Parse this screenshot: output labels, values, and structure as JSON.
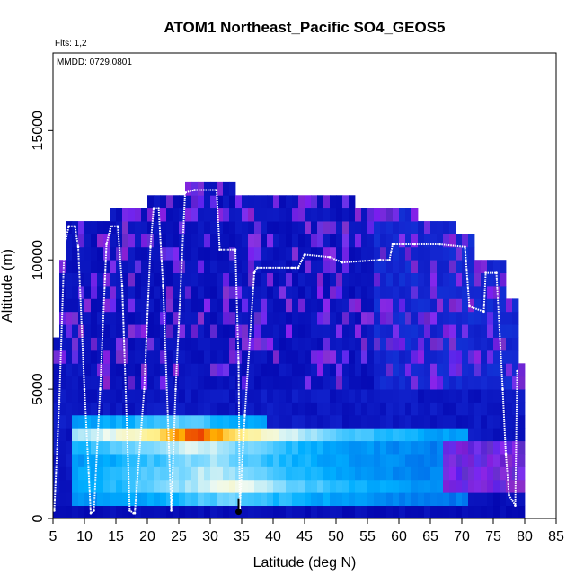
{
  "chart_data": {
    "type": "heatmap",
    "title": "ATOM1 Northeast_Pacific SO4_GEOS5",
    "flights_note": "Flts: 1,2",
    "date_note": "MMDD: 0729,0801",
    "xlabel": "Latitude (deg N)",
    "ylabel": "Altitude (m)",
    "xlim": [
      5,
      85
    ],
    "ylim": [
      0,
      18000
    ],
    "x_ticks": [
      5,
      10,
      15,
      20,
      25,
      30,
      35,
      40,
      45,
      50,
      55,
      60,
      65,
      70,
      75,
      80,
      85
    ],
    "y_ticks": [
      0,
      5000,
      10000,
      15000
    ],
    "grid": false,
    "column_tops": [
      {
        "lat": 5,
        "top": 7000
      },
      {
        "lat": 6,
        "top": 10000
      },
      {
        "lat": 7,
        "top": 11500
      },
      {
        "lat": 14,
        "top": 12000
      },
      {
        "lat": 20,
        "top": 12500
      },
      {
        "lat": 26,
        "top": 13000
      },
      {
        "lat": 34,
        "top": 12500
      },
      {
        "lat": 53,
        "top": 12000
      },
      {
        "lat": 63,
        "top": 11500
      },
      {
        "lat": 69,
        "top": 11000
      },
      {
        "lat": 72,
        "top": 10000
      },
      {
        "lat": 77,
        "top": 8500
      },
      {
        "lat": 79,
        "top": 6000
      }
    ],
    "plume_bands": [
      {
        "alt_center": 3300,
        "lat_start": 8,
        "lat_end": 70,
        "peak_lat": 28,
        "peak_intensity": 1.0
      },
      {
        "alt_center": 2800,
        "lat_start": 8,
        "lat_end": 66,
        "peak_lat": 27,
        "peak_intensity": 0.55
      },
      {
        "alt_center": 2200,
        "lat_start": 8,
        "lat_end": 70,
        "peak_lat": 30,
        "peak_intensity": 0.45
      },
      {
        "alt_center": 1800,
        "lat_start": 8,
        "lat_end": 74,
        "peak_lat": 30,
        "peak_intensity": 0.5
      },
      {
        "alt_center": 1100,
        "lat_start": 8,
        "lat_end": 70,
        "peak_lat": 33,
        "peak_intensity": 0.7
      },
      {
        "alt_center": 3800,
        "lat_start": 8,
        "lat_end": 38,
        "peak_lat": 25,
        "peak_intensity": 0.35
      }
    ],
    "flight_track": [
      [
        5.2,
        300
      ],
      [
        6,
        4500
      ],
      [
        6.8,
        10500
      ],
      [
        7.5,
        11300
      ],
      [
        8.5,
        11300
      ],
      [
        9,
        10500
      ],
      [
        10,
        5000
      ],
      [
        11,
        200
      ],
      [
        11.5,
        300
      ],
      [
        12.5,
        5000
      ],
      [
        13.5,
        10600
      ],
      [
        14.2,
        11300
      ],
      [
        15.3,
        11300
      ],
      [
        16,
        9000
      ],
      [
        17.2,
        300
      ],
      [
        17.8,
        200
      ],
      [
        18,
        200
      ],
      [
        19.5,
        5000
      ],
      [
        20.5,
        10500
      ],
      [
        21,
        12000
      ],
      [
        21.8,
        12000
      ],
      [
        22.5,
        9000
      ],
      [
        23.8,
        300
      ],
      [
        24.5,
        5000
      ],
      [
        25.5,
        10000
      ],
      [
        26,
        12600
      ],
      [
        27.5,
        12700
      ],
      [
        31,
        12700
      ],
      [
        31.5,
        10400
      ],
      [
        34,
        10400
      ],
      [
        34.5,
        6000
      ],
      [
        34.7,
        400
      ],
      [
        35.5,
        4000
      ],
      [
        37,
        9500
      ],
      [
        37.5,
        9700
      ],
      [
        43,
        9700
      ],
      [
        43.5,
        9700
      ],
      [
        44,
        9700
      ],
      [
        45,
        10200
      ],
      [
        49,
        10100
      ],
      [
        51,
        9900
      ],
      [
        57,
        10000
      ],
      [
        58.5,
        10000
      ],
      [
        59,
        10600
      ],
      [
        62.5,
        10600
      ],
      [
        66.5,
        10600
      ],
      [
        70.5,
        10500
      ],
      [
        71.2,
        8200
      ],
      [
        73.5,
        8000
      ],
      [
        73.8,
        9500
      ],
      [
        75.5,
        9500
      ],
      [
        76.5,
        5000
      ],
      [
        77,
        2500
      ],
      [
        77.5,
        900
      ],
      [
        78.5,
        500
      ],
      [
        78.8,
        5700
      ]
    ],
    "marker": {
      "lat": 34.5,
      "alt": 150
    }
  }
}
